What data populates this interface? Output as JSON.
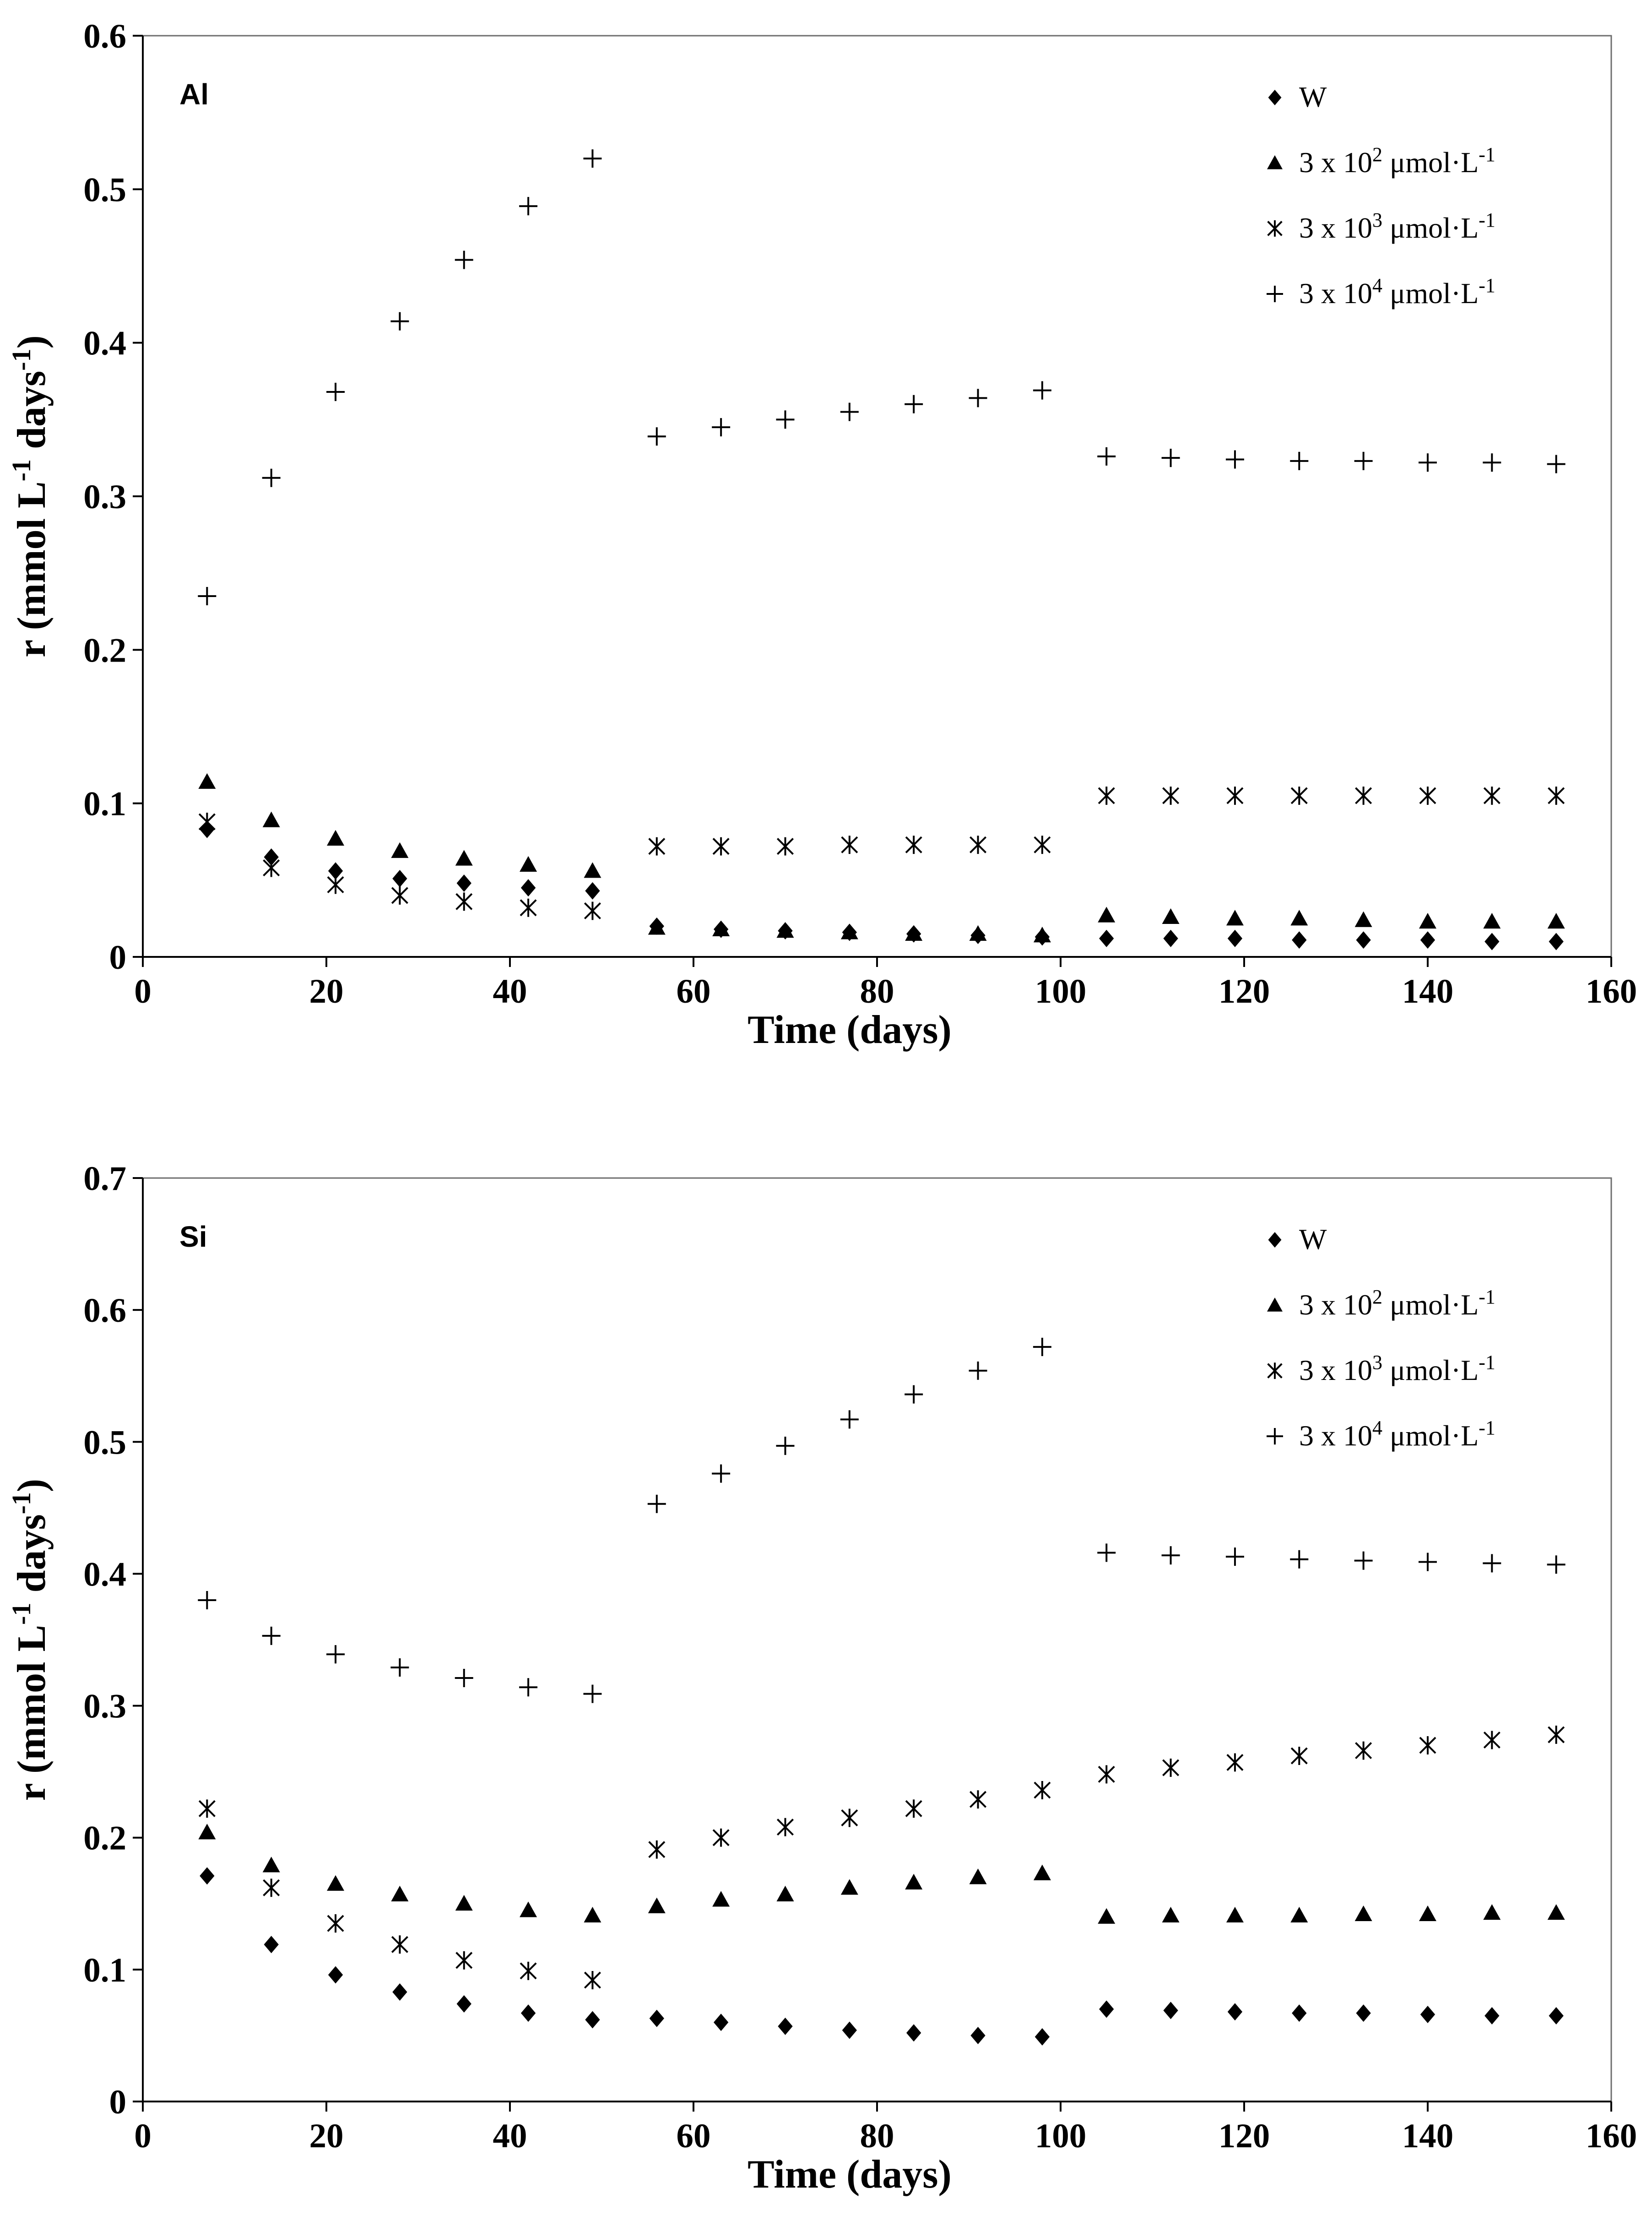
{
  "chart_data": [
    {
      "type": "scatter",
      "panel_label": "Al",
      "title": "",
      "xlabel": "Time (days)",
      "ylabel": "r (mmol L-1 days-1)",
      "xlim": [
        0,
        160
      ],
      "ylim": [
        0,
        0.6
      ],
      "xticks": [
        "0",
        "20",
        "40",
        "60",
        "80",
        "100",
        "120",
        "140",
        "160"
      ],
      "yticks": [
        "0",
        "0.1",
        "0.2",
        "0.3",
        "0.4",
        "0.5",
        "0.6"
      ],
      "legend_position": "top-right",
      "x": [
        7,
        14,
        21,
        28,
        35,
        42,
        49,
        56,
        63,
        70,
        77,
        84,
        91,
        98,
        105,
        112,
        119,
        126,
        133,
        140,
        147,
        154
      ],
      "series": [
        {
          "name": "W",
          "marker": "diamond",
          "values": [
            0.083,
            0.065,
            0.056,
            0.051,
            0.048,
            0.045,
            0.043,
            0.02,
            0.018,
            0.017,
            0.016,
            0.015,
            0.014,
            0.013,
            0.012,
            0.012,
            0.012,
            0.011,
            0.011,
            0.011,
            0.01,
            0.01
          ]
        },
        {
          "name": "3 x 10² μmol·L⁻¹",
          "marker": "triangle",
          "values": [
            0.114,
            0.089,
            0.077,
            0.069,
            0.064,
            0.06,
            0.056,
            0.019,
            0.018,
            0.017,
            0.016,
            0.015,
            0.015,
            0.014,
            0.027,
            0.026,
            0.025,
            0.025,
            0.024,
            0.023,
            0.023,
            0.023
          ]
        },
        {
          "name": "3 x 10³ μmol·L⁻¹",
          "marker": "asterisk",
          "values": [
            0.088,
            0.058,
            0.047,
            0.04,
            0.036,
            0.032,
            0.03,
            0.072,
            0.072,
            0.072,
            0.073,
            0.073,
            0.073,
            0.073,
            0.105,
            0.105,
            0.105,
            0.105,
            0.105,
            0.105,
            0.105,
            0.105
          ]
        },
        {
          "name": "3 x 10⁴ μmol·L⁻¹",
          "marker": "plus",
          "values": [
            0.235,
            0.312,
            0.368,
            0.414,
            0.454,
            0.489,
            0.52,
            0.339,
            0.345,
            0.35,
            0.355,
            0.36,
            0.364,
            0.369,
            0.326,
            0.325,
            0.324,
            0.323,
            0.323,
            0.322,
            0.322,
            0.321
          ]
        }
      ]
    },
    {
      "type": "scatter",
      "panel_label": "Si",
      "title": "",
      "xlabel": "Time (days)",
      "ylabel": "r (mmol L-1 days-1)",
      "xlim": [
        0,
        160
      ],
      "ylim": [
        0,
        0.7
      ],
      "xticks": [
        "0",
        "20",
        "40",
        "60",
        "80",
        "100",
        "120",
        "140",
        "160"
      ],
      "yticks": [
        "0",
        "0.1",
        "0.2",
        "0.3",
        "0.4",
        "0.5",
        "0.6",
        "0.7"
      ],
      "legend_position": "top-right",
      "x": [
        7,
        14,
        21,
        28,
        35,
        42,
        49,
        56,
        63,
        70,
        77,
        84,
        91,
        98,
        105,
        112,
        119,
        126,
        133,
        140,
        147,
        154
      ],
      "series": [
        {
          "name": "W",
          "marker": "diamond",
          "values": [
            0.171,
            0.119,
            0.096,
            0.083,
            0.074,
            0.067,
            0.062,
            0.063,
            0.06,
            0.057,
            0.054,
            0.052,
            0.05,
            0.049,
            0.07,
            0.069,
            0.068,
            0.067,
            0.067,
            0.066,
            0.065,
            0.065
          ]
        },
        {
          "name": "3 x 10² μmol·L⁻¹",
          "marker": "triangle",
          "values": [
            0.204,
            0.179,
            0.165,
            0.157,
            0.15,
            0.145,
            0.141,
            0.148,
            0.153,
            0.157,
            0.162,
            0.166,
            0.17,
            0.173,
            0.14,
            0.141,
            0.141,
            0.141,
            0.142,
            0.142,
            0.143,
            0.143
          ]
        },
        {
          "name": "3 x 10³ μmol·L⁻¹",
          "marker": "asterisk",
          "values": [
            0.222,
            0.162,
            0.135,
            0.119,
            0.107,
            0.099,
            0.092,
            0.191,
            0.2,
            0.208,
            0.215,
            0.222,
            0.229,
            0.236,
            0.248,
            0.253,
            0.257,
            0.262,
            0.266,
            0.27,
            0.274,
            0.278
          ]
        },
        {
          "name": "3 x 10⁴ μmol·L⁻¹",
          "marker": "plus",
          "values": [
            0.38,
            0.353,
            0.339,
            0.329,
            0.321,
            0.314,
            0.309,
            0.453,
            0.476,
            0.497,
            0.517,
            0.536,
            0.554,
            0.572,
            0.416,
            0.414,
            0.413,
            0.411,
            0.41,
            0.409,
            0.408,
            0.407
          ]
        }
      ]
    }
  ]
}
